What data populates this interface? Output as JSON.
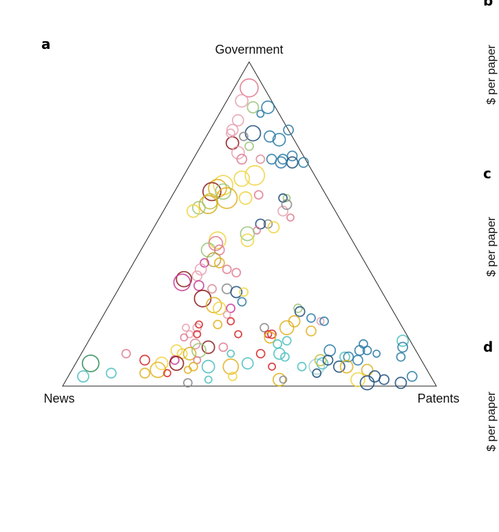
{
  "panels": {
    "a": "a",
    "b": "b",
    "c": "c",
    "d": "d"
  },
  "side_labels": {
    "b_ylabel": "$ per paper",
    "c_ylabel": "$ per paper",
    "d_ylabel": "$ per paper"
  },
  "chart_data": {
    "type": "scatter",
    "subtype": "ternary-bubble",
    "title": "",
    "vertices": {
      "top": "Government",
      "left": "News",
      "right": "Patents"
    },
    "grid": false,
    "legend": "none",
    "point_format": [
      "Government share",
      "News share",
      "Patents share",
      "bubble size",
      "color"
    ],
    "points": [
      [
        0.92,
        0.04,
        0.04,
        13,
        "#e07b91"
      ],
      [
        0.88,
        0.08,
        0.04,
        9,
        "#e8a1b0"
      ],
      [
        0.86,
        0.06,
        0.08,
        8,
        "#9bc47a"
      ],
      [
        0.86,
        0.02,
        0.12,
        9,
        "#2c7ba6"
      ],
      [
        0.84,
        0.05,
        0.11,
        5,
        "#2c7ba6"
      ],
      [
        0.82,
        0.12,
        0.06,
        8,
        "#e8a1b0"
      ],
      [
        0.79,
        0.15,
        0.06,
        8,
        "#e8a1b0"
      ],
      [
        0.78,
        0.1,
        0.12,
        11,
        "#1f4e79"
      ],
      [
        0.77,
        0.06,
        0.17,
        8,
        "#2c7ba6"
      ],
      [
        0.79,
        0.0,
        0.21,
        7,
        "#2c7ba6"
      ],
      [
        0.76,
        0.04,
        0.2,
        9,
        "#2c7ba6"
      ],
      [
        0.77,
        0.13,
        0.1,
        6,
        "#888888"
      ],
      [
        0.75,
        0.17,
        0.08,
        9,
        "#8b1a1a"
      ],
      [
        0.74,
        0.13,
        0.13,
        6,
        "#9bc47a"
      ],
      [
        0.78,
        0.16,
        0.06,
        6,
        "#e8a1b0"
      ],
      [
        0.72,
        0.17,
        0.11,
        9,
        "#e8a1b0"
      ],
      [
        0.7,
        0.17,
        0.13,
        7,
        "#e07b91"
      ],
      [
        0.7,
        0.09,
        0.21,
        7,
        "#2c7ba6"
      ],
      [
        0.7,
        0.06,
        0.24,
        7,
        "#2c7ba6"
      ],
      [
        0.71,
        0.03,
        0.26,
        7,
        "#2c7ba6"
      ],
      [
        0.69,
        0.01,
        0.3,
        7,
        "#2c7ba6"
      ],
      [
        0.69,
        0.04,
        0.27,
        8,
        "#1f4e79"
      ],
      [
        0.69,
        0.07,
        0.24,
        8,
        "#2c7ba6"
      ],
      [
        0.7,
        0.12,
        0.18,
        6,
        "#d88f9a"
      ],
      [
        0.65,
        0.16,
        0.19,
        14,
        "#f0d340"
      ],
      [
        0.64,
        0.2,
        0.16,
        11,
        "#f0d340"
      ],
      [
        0.62,
        0.26,
        0.12,
        14,
        "#f0d340"
      ],
      [
        0.61,
        0.28,
        0.11,
        13,
        "#e0b020"
      ],
      [
        0.6,
        0.3,
        0.1,
        13,
        "#8b1a1a"
      ],
      [
        0.6,
        0.27,
        0.13,
        11,
        "#9bc47a"
      ],
      [
        0.58,
        0.27,
        0.15,
        15,
        "#e0b020"
      ],
      [
        0.57,
        0.32,
        0.11,
        11,
        "#c0c040"
      ],
      [
        0.56,
        0.33,
        0.11,
        13,
        "#d4b020"
      ],
      [
        0.55,
        0.36,
        0.09,
        9,
        "#9bc47a"
      ],
      [
        0.54,
        0.38,
        0.08,
        9,
        "#f0d340"
      ],
      [
        0.58,
        0.22,
        0.2,
        9,
        "#f0d340"
      ],
      [
        0.59,
        0.18,
        0.23,
        6,
        "#e07b91"
      ],
      [
        0.58,
        0.11,
        0.31,
        5,
        "#9bc47a"
      ],
      [
        0.58,
        0.12,
        0.3,
        6,
        "#1f4e79"
      ],
      [
        0.54,
        0.14,
        0.32,
        7,
        "#e8a1b0"
      ],
      [
        0.56,
        0.12,
        0.32,
        7,
        "#888888"
      ],
      [
        0.52,
        0.13,
        0.35,
        5,
        "#e07b91"
      ],
      [
        0.5,
        0.2,
        0.3,
        6,
        "#888888"
      ],
      [
        0.49,
        0.19,
        0.32,
        8,
        "#f0d340"
      ],
      [
        0.5,
        0.22,
        0.28,
        7,
        "#1f4e79"
      ],
      [
        0.48,
        0.24,
        0.28,
        5,
        "#e07b91"
      ],
      [
        0.47,
        0.27,
        0.26,
        10,
        "#9bc47a"
      ],
      [
        0.45,
        0.28,
        0.27,
        9,
        "#f0d340"
      ],
      [
        0.45,
        0.36,
        0.19,
        12,
        "#f0d340"
      ],
      [
        0.44,
        0.37,
        0.19,
        10,
        "#e07b91"
      ],
      [
        0.42,
        0.4,
        0.18,
        10,
        "#9bc47a"
      ],
      [
        0.42,
        0.37,
        0.21,
        7,
        "#e07b91"
      ],
      [
        0.39,
        0.4,
        0.21,
        10,
        "#c0a040"
      ],
      [
        0.38,
        0.39,
        0.23,
        7,
        "#e0b020"
      ],
      [
        0.36,
        0.38,
        0.26,
        6,
        "#e07b91"
      ],
      [
        0.35,
        0.36,
        0.29,
        6,
        "#e07b91"
      ],
      [
        0.38,
        0.43,
        0.19,
        6,
        "#c83c9a"
      ],
      [
        0.36,
        0.45,
        0.19,
        8,
        "#e8a1b0"
      ],
      [
        0.34,
        0.47,
        0.19,
        7,
        "#e8a1b0"
      ],
      [
        0.33,
        0.51,
        0.16,
        11,
        "#8b1a1a"
      ],
      [
        0.32,
        0.52,
        0.16,
        12,
        "#c83c9a"
      ],
      [
        0.31,
        0.48,
        0.21,
        7,
        "#c83c9a"
      ],
      [
        0.3,
        0.45,
        0.25,
        6,
        "#d88f9a"
      ],
      [
        0.3,
        0.41,
        0.29,
        7,
        "#888888"
      ],
      [
        0.29,
        0.39,
        0.32,
        8,
        "#1f4e79"
      ],
      [
        0.29,
        0.37,
        0.34,
        6,
        "#f0d340"
      ],
      [
        0.27,
        0.49,
        0.24,
        12,
        "#8b1a1a"
      ],
      [
        0.25,
        0.47,
        0.28,
        11,
        "#e0b020"
      ],
      [
        0.24,
        0.46,
        0.3,
        9,
        "#f0d340"
      ],
      [
        0.26,
        0.39,
        0.35,
        6,
        "#2c7ba6"
      ],
      [
        0.24,
        0.43,
        0.33,
        6,
        "#c83c9a"
      ],
      [
        0.22,
        0.45,
        0.33,
        5,
        "#e8a1b0"
      ],
      [
        0.2,
        0.45,
        0.35,
        5,
        "#d62728"
      ],
      [
        0.24,
        0.25,
        0.51,
        6,
        "#9bc47a"
      ],
      [
        0.23,
        0.25,
        0.52,
        7,
        "#1f4e79"
      ],
      [
        0.21,
        0.23,
        0.56,
        6,
        "#2c7ba6"
      ],
      [
        0.18,
        0.31,
        0.51,
        10,
        "#e0b020"
      ],
      [
        0.2,
        0.28,
        0.52,
        8,
        "#e0b020"
      ],
      [
        0.17,
        0.25,
        0.58,
        7,
        "#e0b020"
      ],
      [
        0.2,
        0.21,
        0.59,
        5,
        "#e8a1b0"
      ],
      [
        0.2,
        0.2,
        0.6,
        6,
        "#2c7ba6"
      ],
      [
        0.19,
        0.49,
        0.32,
        6,
        "#e0b020"
      ],
      [
        0.18,
        0.55,
        0.27,
        6,
        "#e8a1b0"
      ],
      [
        0.18,
        0.58,
        0.24,
        5,
        "#e8a1b0"
      ],
      [
        0.16,
        0.58,
        0.26,
        5,
        "#e8a1b0"
      ],
      [
        0.16,
        0.56,
        0.28,
        5,
        "#d62728"
      ],
      [
        0.15,
        0.6,
        0.25,
        5,
        "#e07b91"
      ],
      [
        0.19,
        0.54,
        0.27,
        5,
        "#d62728"
      ],
      [
        0.16,
        0.45,
        0.39,
        5,
        "#d62728"
      ],
      [
        0.18,
        0.37,
        0.45,
        6,
        "#888888"
      ],
      [
        0.16,
        0.37,
        0.47,
        5,
        "#d62728"
      ],
      [
        0.16,
        0.36,
        0.48,
        6,
        "#d62728"
      ],
      [
        0.15,
        0.37,
        0.48,
        8,
        "#e0b020"
      ],
      [
        0.13,
        0.36,
        0.51,
        6,
        "#4fbfbf"
      ],
      [
        0.14,
        0.33,
        0.53,
        6,
        "#4fbfbf"
      ],
      [
        0.13,
        0.58,
        0.29,
        7,
        "#d88f9a"
      ],
      [
        0.12,
        0.55,
        0.33,
        9,
        "#8b1a1a"
      ],
      [
        0.12,
        0.51,
        0.37,
        6,
        "#e07b91"
      ],
      [
        0.11,
        0.58,
        0.31,
        10,
        "#9bc47a"
      ],
      [
        0.1,
        0.63,
        0.27,
        7,
        "#f0d340"
      ],
      [
        0.1,
        0.5,
        0.4,
        5,
        "#4fbfbf"
      ],
      [
        0.1,
        0.42,
        0.48,
        6,
        "#d62728"
      ],
      [
        0.1,
        0.37,
        0.53,
        8,
        "#4fbfbf"
      ],
      [
        0.09,
        0.36,
        0.55,
        6,
        "#4fbfbf"
      ],
      [
        0.09,
        0.2,
        0.71,
        7,
        "#4fbfbf"
      ],
      [
        0.09,
        0.19,
        0.72,
        7,
        "#2c7ba6"
      ],
      [
        0.08,
        0.17,
        0.75,
        7,
        "#2c7ba6"
      ],
      [
        0.11,
        0.23,
        0.66,
        8,
        "#2c7ba6"
      ],
      [
        0.13,
        0.13,
        0.74,
        6,
        "#2c7ba6"
      ],
      [
        0.11,
        0.13,
        0.76,
        6,
        "#2c7ba6"
      ],
      [
        0.11,
        0.15,
        0.74,
        7,
        "#2c7ba6"
      ],
      [
        0.1,
        0.11,
        0.79,
        5,
        "#2c7ba6"
      ],
      [
        0.14,
        0.02,
        0.84,
        8,
        "#4fbfbf"
      ],
      [
        0.12,
        0.03,
        0.85,
        7,
        "#2c7ba6"
      ],
      [
        0.09,
        0.05,
        0.86,
        6,
        "#2c7ba6"
      ],
      [
        0.1,
        0.61,
        0.29,
        9,
        "#d4b020"
      ],
      [
        0.11,
        0.64,
        0.25,
        8,
        "#f0d340"
      ],
      [
        0.08,
        0.66,
        0.26,
        6,
        "#c83c9a"
      ],
      [
        0.08,
        0.6,
        0.32,
        5,
        "#e07b91"
      ],
      [
        0.07,
        0.7,
        0.23,
        9,
        "#f0d340"
      ],
      [
        0.07,
        0.66,
        0.27,
        10,
        "#8b1a1a"
      ],
      [
        0.06,
        0.62,
        0.32,
        6,
        "#e0b020"
      ],
      [
        0.06,
        0.58,
        0.36,
        9,
        "#4fbfbf"
      ],
      [
        0.06,
        0.52,
        0.42,
        11,
        "#e0b020"
      ],
      [
        0.07,
        0.47,
        0.46,
        8,
        "#4fbfbf"
      ],
      [
        0.06,
        0.41,
        0.53,
        5,
        "#d62728"
      ],
      [
        0.06,
        0.33,
        0.61,
        6,
        "#4fbfbf"
      ],
      [
        0.06,
        0.29,
        0.65,
        11,
        "#a0d4d4"
      ],
      [
        0.07,
        0.27,
        0.66,
        8,
        "#4fbfbf"
      ],
      [
        0.08,
        0.27,
        0.65,
        8,
        "#c0c040"
      ],
      [
        0.08,
        0.25,
        0.67,
        7,
        "#1f4e79"
      ],
      [
        0.06,
        0.23,
        0.71,
        8,
        "#1f4e79"
      ],
      [
        0.06,
        0.21,
        0.73,
        9,
        "#e0b020"
      ],
      [
        0.04,
        0.3,
        0.66,
        6,
        "#1f4e79"
      ],
      [
        0.05,
        0.16,
        0.79,
        8,
        "#e0b020"
      ],
      [
        0.02,
        0.41,
        0.57,
        9,
        "#e0b020"
      ],
      [
        0.03,
        0.15,
        0.82,
        8,
        "#1f4e79"
      ],
      [
        0.02,
        0.2,
        0.78,
        10,
        "#f0d340"
      ],
      [
        0.02,
        0.13,
        0.85,
        7,
        "#1f4e79"
      ],
      [
        0.01,
        0.09,
        0.9,
        8,
        "#1f4e79"
      ],
      [
        0.01,
        0.18,
        0.81,
        10,
        "#1f4e79"
      ],
      [
        0.03,
        0.05,
        0.92,
        7,
        "#2c7ba6"
      ],
      [
        0.05,
        0.72,
        0.23,
        11,
        "#e0b020"
      ],
      [
        0.04,
        0.76,
        0.2,
        7,
        "#e0b020"
      ],
      [
        0.02,
        0.4,
        0.58,
        5,
        "#888888"
      ],
      [
        0.01,
        0.66,
        0.33,
        6,
        "#888888"
      ],
      [
        0.02,
        0.6,
        0.38,
        5,
        "#4fbfbf"
      ],
      [
        0.07,
        0.89,
        0.04,
        12,
        "#2e8b57"
      ],
      [
        0.03,
        0.93,
        0.04,
        8,
        "#4fbfbf"
      ],
      [
        0.04,
        0.85,
        0.11,
        7,
        "#4fbfbf"
      ],
      [
        0.1,
        0.78,
        0.12,
        6,
        "#e07b91"
      ],
      [
        0.08,
        0.74,
        0.18,
        7,
        "#d62728"
      ],
      [
        0.04,
        0.7,
        0.26,
        5,
        "#d62728"
      ],
      [
        0.05,
        0.64,
        0.31,
        5,
        "#e0b020"
      ],
      [
        0.03,
        0.53,
        0.44,
        6,
        "#f0d340"
      ]
    ]
  }
}
